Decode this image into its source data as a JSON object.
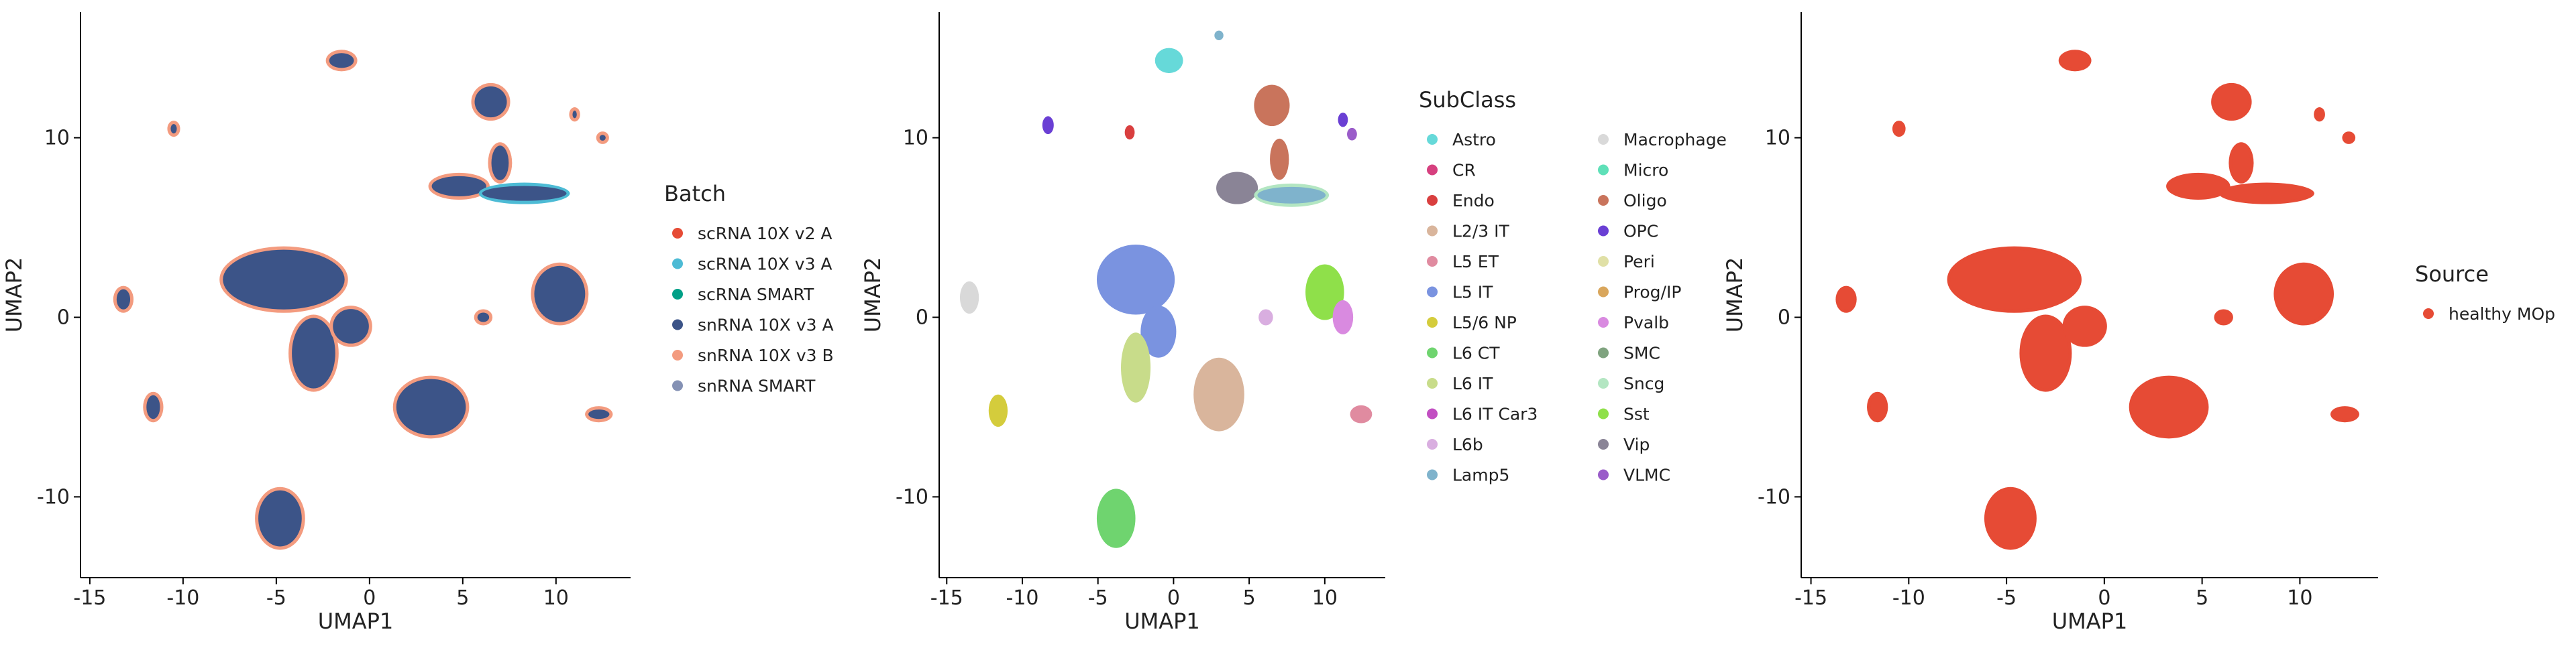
{
  "chart_data": [
    {
      "type": "scatter",
      "xlabel": "UMAP1",
      "ylabel": "UMAP2",
      "xlim": [
        -15.5,
        14
      ],
      "ylim": [
        -14.5,
        17
      ],
      "xticks": [
        -15,
        -10,
        -5,
        0,
        5,
        10
      ],
      "yticks": [
        -10,
        0,
        10
      ],
      "tick_labels_x": [
        "-15",
        "-10",
        "-5",
        "0",
        "5",
        "10"
      ],
      "tick_labels_y": [
        "-10",
        "0",
        "10"
      ],
      "grid": false,
      "legend_title": "Batch",
      "legend_placement": "right",
      "legend_columns": 1,
      "series": [
        {
          "name": "scRNA 10X v2 A",
          "color": "#e64b35"
        },
        {
          "name": "scRNA 10X v3 A",
          "color": "#4dbbd5"
        },
        {
          "name": "scRNA SMART",
          "color": "#00a087"
        },
        {
          "name": "snRNA 10X v3 A",
          "color": "#3c5488"
        },
        {
          "name": "snRNA 10X v3 B",
          "color": "#f39b7f"
        },
        {
          "name": "snRNA SMART",
          "color": "#8491b4"
        }
      ],
      "clusters": [
        {
          "x": -1.5,
          "y": 14.3,
          "sx": 0.7,
          "sy": 0.45,
          "color": "#3c5488",
          "edge": "#f39b7f"
        },
        {
          "x": 6.5,
          "y": 12.0,
          "sx": 0.9,
          "sy": 0.9,
          "color": "#3c5488",
          "edge": "#f39b7f"
        },
        {
          "x": 7.0,
          "y": 8.6,
          "sx": 0.5,
          "sy": 1.0,
          "color": "#3c5488",
          "edge": "#f39b7f"
        },
        {
          "x": 4.8,
          "y": 7.3,
          "sx": 1.5,
          "sy": 0.6,
          "color": "#3c5488",
          "edge": "#f39b7f"
        },
        {
          "x": 8.3,
          "y": 6.9,
          "sx": 2.3,
          "sy": 0.45,
          "color": "#3c5488",
          "edge": "#4dbbd5"
        },
        {
          "x": -4.6,
          "y": 2.1,
          "sx": 3.3,
          "sy": 1.7,
          "color": "#3c5488",
          "edge": "#f39b7f"
        },
        {
          "x": -3.0,
          "y": -2.0,
          "sx": 1.2,
          "sy": 2.0,
          "color": "#3c5488",
          "edge": "#f39b7f"
        },
        {
          "x": -1.0,
          "y": -0.5,
          "sx": 1.0,
          "sy": 1.0,
          "color": "#3c5488",
          "edge": "#f39b7f"
        },
        {
          "x": 3.3,
          "y": -5.0,
          "sx": 1.9,
          "sy": 1.6,
          "color": "#3c5488",
          "edge": "#f39b7f"
        },
        {
          "x": 10.2,
          "y": 1.3,
          "sx": 1.4,
          "sy": 1.6,
          "color": "#3c5488",
          "edge": "#f39b7f"
        },
        {
          "x": -4.8,
          "y": -11.2,
          "sx": 1.2,
          "sy": 1.6,
          "color": "#3c5488",
          "edge": "#f39b7f"
        },
        {
          "x": -13.2,
          "y": 1.0,
          "sx": 0.4,
          "sy": 0.6,
          "color": "#3c5488",
          "edge": "#f39b7f"
        },
        {
          "x": -11.6,
          "y": -5.0,
          "sx": 0.4,
          "sy": 0.7,
          "color": "#3c5488",
          "edge": "#f39b7f"
        },
        {
          "x": 12.3,
          "y": -5.4,
          "sx": 0.6,
          "sy": 0.3,
          "color": "#3c5488",
          "edge": "#f39b7f"
        },
        {
          "x": 6.1,
          "y": 0.0,
          "sx": 0.35,
          "sy": 0.3,
          "color": "#3c5488",
          "edge": "#f39b7f"
        },
        {
          "x": -10.5,
          "y": 10.5,
          "sx": 0.2,
          "sy": 0.3,
          "color": "#3c5488",
          "edge": "#f39b7f"
        },
        {
          "x": 12.5,
          "y": 10.0,
          "sx": 0.2,
          "sy": 0.2,
          "color": "#3c5488",
          "edge": "#f39b7f"
        },
        {
          "x": 11.0,
          "y": 11.3,
          "sx": 0.15,
          "sy": 0.25,
          "color": "#3c5488",
          "edge": "#f39b7f"
        }
      ]
    },
    {
      "type": "scatter",
      "xlabel": "UMAP1",
      "ylabel": "UMAP2",
      "xlim": [
        -15.5,
        14
      ],
      "ylim": [
        -14.5,
        17
      ],
      "xticks": [
        -15,
        -10,
        -5,
        0,
        5,
        10
      ],
      "yticks": [
        -10,
        0,
        10
      ],
      "tick_labels_x": [
        "-15",
        "-10",
        "-5",
        "0",
        "5",
        "10"
      ],
      "tick_labels_y": [
        "-10",
        "0",
        "10"
      ],
      "grid": false,
      "legend_title": "SubClass",
      "legend_placement": "right",
      "legend_columns": 2,
      "series": [
        {
          "name": "Astro",
          "color": "#66d9d9"
        },
        {
          "name": "CR",
          "color": "#d6407f"
        },
        {
          "name": "Endo",
          "color": "#d93f3f"
        },
        {
          "name": "L2/3 IT",
          "color": "#d9b59c"
        },
        {
          "name": "L5 ET",
          "color": "#e08ba0"
        },
        {
          "name": "L5 IT",
          "color": "#7a93e0"
        },
        {
          "name": "L5/6 NP",
          "color": "#d4cc3c"
        },
        {
          "name": "L6 CT",
          "color": "#6fd46f"
        },
        {
          "name": "L6 IT",
          "color": "#c8dc8a"
        },
        {
          "name": "L6 IT Car3",
          "color": "#c24fc2"
        },
        {
          "name": "L6b",
          "color": "#d9aee0"
        },
        {
          "name": "Lamp5",
          "color": "#7fb3cc"
        },
        {
          "name": "Macrophage",
          "color": "#d9d9d9"
        },
        {
          "name": "Micro",
          "color": "#5fe0b8"
        },
        {
          "name": "Oligo",
          "color": "#c9745c"
        },
        {
          "name": "OPC",
          "color": "#6a3fd4"
        },
        {
          "name": "Peri",
          "color": "#e0e0a6"
        },
        {
          "name": "Prog/IP",
          "color": "#d9a65c"
        },
        {
          "name": "Pvalb",
          "color": "#d98ae0"
        },
        {
          "name": "SMC",
          "color": "#7fa37f"
        },
        {
          "name": "Sncg",
          "color": "#b3e6c2"
        },
        {
          "name": "Sst",
          "color": "#8fe04a"
        },
        {
          "name": "Vip",
          "color": "#8a8496"
        },
        {
          "name": "VLMC",
          "color": "#9a5cc9"
        }
      ],
      "clusters": [
        {
          "x": -0.3,
          "y": 14.3,
          "sx": 0.75,
          "sy": 0.55,
          "color": "#66d9d9",
          "edge": "#66d9d9"
        },
        {
          "x": 6.5,
          "y": 11.8,
          "sx": 1.0,
          "sy": 1.0,
          "color": "#c9745c",
          "edge": "#c9745c"
        },
        {
          "x": 7.0,
          "y": 8.8,
          "sx": 0.45,
          "sy": 1.0,
          "color": "#c9745c",
          "edge": "#c9745c"
        },
        {
          "x": 4.2,
          "y": 7.2,
          "sx": 1.2,
          "sy": 0.75,
          "color": "#8a8496",
          "edge": "#8a8496"
        },
        {
          "x": 7.8,
          "y": 6.8,
          "sx": 2.3,
          "sy": 0.5,
          "color": "#7fb3cc",
          "edge": "#b3e6c2"
        },
        {
          "x": -2.5,
          "y": 2.1,
          "sx": 2.4,
          "sy": 1.8,
          "color": "#7a93e0",
          "edge": "#7a93e0"
        },
        {
          "x": -1.0,
          "y": -0.8,
          "sx": 1.0,
          "sy": 1.3,
          "color": "#7a93e0",
          "edge": "#7a93e0"
        },
        {
          "x": -2.5,
          "y": -2.8,
          "sx": 0.8,
          "sy": 1.8,
          "color": "#c8dc8a",
          "edge": "#c8dc8a"
        },
        {
          "x": 3.0,
          "y": -4.3,
          "sx": 1.5,
          "sy": 1.9,
          "color": "#d9b59c",
          "edge": "#d9b59c"
        },
        {
          "x": 10.0,
          "y": 1.4,
          "sx": 1.1,
          "sy": 1.4,
          "color": "#8fe04a",
          "edge": "#8fe04a"
        },
        {
          "x": 11.2,
          "y": 0.0,
          "sx": 0.5,
          "sy": 0.8,
          "color": "#d98ae0",
          "edge": "#d98ae0"
        },
        {
          "x": -3.8,
          "y": -11.2,
          "sx": 1.1,
          "sy": 1.5,
          "color": "#6fd46f",
          "edge": "#6fd46f"
        },
        {
          "x": -13.5,
          "y": 1.1,
          "sx": 0.45,
          "sy": 0.75,
          "color": "#d9d9d9",
          "edge": "#d9d9d9"
        },
        {
          "x": -11.6,
          "y": -5.2,
          "sx": 0.45,
          "sy": 0.75,
          "color": "#d4cc3c",
          "edge": "#d4cc3c"
        },
        {
          "x": 12.4,
          "y": -5.4,
          "sx": 0.55,
          "sy": 0.35,
          "color": "#e08ba0",
          "edge": "#e08ba0"
        },
        {
          "x": 6.1,
          "y": 0.0,
          "sx": 0.3,
          "sy": 0.3,
          "color": "#d9aee0",
          "edge": "#d9aee0"
        },
        {
          "x": -8.3,
          "y": 10.7,
          "sx": 0.2,
          "sy": 0.35,
          "color": "#6a3fd4",
          "edge": "#6a3fd4"
        },
        {
          "x": 11.2,
          "y": 11.0,
          "sx": 0.15,
          "sy": 0.25,
          "color": "#6a3fd4",
          "edge": "#6a3fd4"
        },
        {
          "x": 11.8,
          "y": 10.2,
          "sx": 0.15,
          "sy": 0.2,
          "color": "#9a5cc9",
          "edge": "#9a5cc9"
        },
        {
          "x": -2.9,
          "y": 10.3,
          "sx": 0.15,
          "sy": 0.25,
          "color": "#d93f3f",
          "edge": "#d93f3f"
        },
        {
          "x": 3.0,
          "y": 15.7,
          "sx": 0.12,
          "sy": 0.12,
          "color": "#7fb3cc",
          "edge": "#7fb3cc"
        }
      ]
    },
    {
      "type": "scatter",
      "xlabel": "UMAP1",
      "ylabel": "UMAP2",
      "xlim": [
        -15.5,
        14
      ],
      "ylim": [
        -14.5,
        17
      ],
      "xticks": [
        -15,
        -10,
        -5,
        0,
        5,
        10
      ],
      "yticks": [
        -10,
        0,
        10
      ],
      "tick_labels_x": [
        "-15",
        "-10",
        "-5",
        "0",
        "5",
        "10"
      ],
      "tick_labels_y": [
        "-10",
        "0",
        "10"
      ],
      "grid": false,
      "legend_title": "Source",
      "legend_placement": "right",
      "legend_columns": 1,
      "series": [
        {
          "name": "healthy MOp",
          "color": "#e64b35"
        }
      ],
      "clusters": [
        {
          "x": -1.5,
          "y": 14.3,
          "sx": 0.7,
          "sy": 0.45,
          "color": "#e64b35",
          "edge": "#e64b35"
        },
        {
          "x": 6.5,
          "y": 12.0,
          "sx": 0.9,
          "sy": 0.9,
          "color": "#e64b35",
          "edge": "#e64b35"
        },
        {
          "x": 7.0,
          "y": 8.6,
          "sx": 0.5,
          "sy": 1.0,
          "color": "#e64b35",
          "edge": "#e64b35"
        },
        {
          "x": 4.8,
          "y": 7.3,
          "sx": 1.5,
          "sy": 0.6,
          "color": "#e64b35",
          "edge": "#e64b35"
        },
        {
          "x": 8.3,
          "y": 6.9,
          "sx": 2.3,
          "sy": 0.45,
          "color": "#e64b35",
          "edge": "#e64b35"
        },
        {
          "x": -4.6,
          "y": 2.1,
          "sx": 3.3,
          "sy": 1.7,
          "color": "#e64b35",
          "edge": "#e64b35"
        },
        {
          "x": -3.0,
          "y": -2.0,
          "sx": 1.2,
          "sy": 2.0,
          "color": "#e64b35",
          "edge": "#e64b35"
        },
        {
          "x": -1.0,
          "y": -0.5,
          "sx": 1.0,
          "sy": 1.0,
          "color": "#e64b35",
          "edge": "#e64b35"
        },
        {
          "x": 3.3,
          "y": -5.0,
          "sx": 1.9,
          "sy": 1.6,
          "color": "#e64b35",
          "edge": "#e64b35"
        },
        {
          "x": 10.2,
          "y": 1.3,
          "sx": 1.4,
          "sy": 1.6,
          "color": "#e64b35",
          "edge": "#e64b35"
        },
        {
          "x": -4.8,
          "y": -11.2,
          "sx": 1.2,
          "sy": 1.6,
          "color": "#e64b35",
          "edge": "#e64b35"
        },
        {
          "x": -13.2,
          "y": 1.0,
          "sx": 0.4,
          "sy": 0.6,
          "color": "#e64b35",
          "edge": "#e64b35"
        },
        {
          "x": -11.6,
          "y": -5.0,
          "sx": 0.4,
          "sy": 0.7,
          "color": "#e64b35",
          "edge": "#e64b35"
        },
        {
          "x": 12.3,
          "y": -5.4,
          "sx": 0.6,
          "sy": 0.3,
          "color": "#e64b35",
          "edge": "#e64b35"
        },
        {
          "x": 6.1,
          "y": 0.0,
          "sx": 0.35,
          "sy": 0.3,
          "color": "#e64b35",
          "edge": "#e64b35"
        },
        {
          "x": -10.5,
          "y": 10.5,
          "sx": 0.2,
          "sy": 0.3,
          "color": "#e64b35",
          "edge": "#e64b35"
        },
        {
          "x": 12.5,
          "y": 10.0,
          "sx": 0.2,
          "sy": 0.2,
          "color": "#e64b35",
          "edge": "#e64b35"
        },
        {
          "x": 11.0,
          "y": 11.3,
          "sx": 0.15,
          "sy": 0.25,
          "color": "#e64b35",
          "edge": "#e64b35"
        }
      ]
    }
  ]
}
